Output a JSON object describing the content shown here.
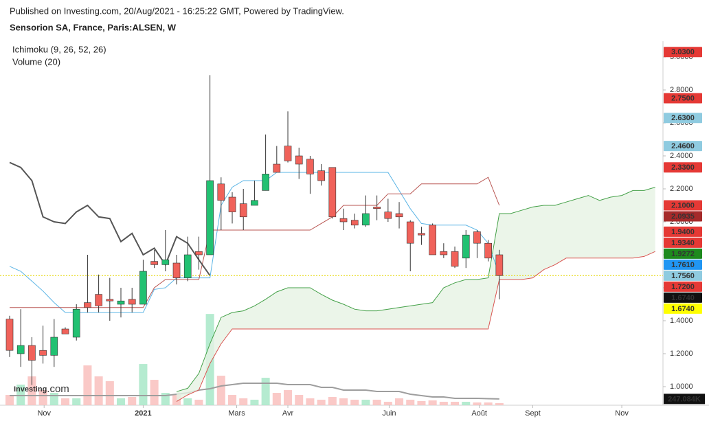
{
  "chart_data": {
    "type": "candlestick",
    "subtitle": "Published on Investing.com, 20/Aug/2021 - 16:25:22 GMT, Powered by TradingView.",
    "title": "Sensorion SA, France, Paris:ALSEN, W",
    "indicators": [
      "Ichimoku (9, 26, 52, 26)",
      "Volume (20)"
    ],
    "watermark": [
      "Investing",
      ".com"
    ],
    "x": [
      0,
      1,
      2,
      3,
      4,
      5,
      6,
      7,
      8,
      9,
      10,
      11,
      12,
      13,
      14,
      15,
      16,
      17,
      18,
      19,
      20,
      21,
      22,
      23,
      24,
      25,
      26,
      27,
      28,
      29,
      30,
      31,
      32,
      33,
      34,
      35,
      36,
      37,
      38,
      39,
      40,
      41,
      42,
      43,
      44
    ],
    "open": [
      1.41,
      1.2,
      1.25,
      1.22,
      1.19,
      1.35,
      1.3,
      1.51,
      1.56,
      1.53,
      1.5,
      1.53,
      1.5,
      1.76,
      1.74,
      1.75,
      1.66,
      1.82,
      1.8,
      2.23,
      2.15,
      2.11,
      2.1,
      2.19,
      2.35,
      2.46,
      2.4,
      2.38,
      2.31,
      2.33,
      2.02,
      2.01,
      1.98,
      2.09,
      2.06,
      2.05,
      2.0,
      1.93,
      1.98,
      1.82,
      1.82,
      1.78,
      1.94,
      1.87,
      1.8
    ],
    "high": [
      1.43,
      1.47,
      1.3,
      1.37,
      1.41,
      1.36,
      1.5,
      1.8,
      1.68,
      1.66,
      1.6,
      1.6,
      1.77,
      1.83,
      1.95,
      1.8,
      1.91,
      1.91,
      2.89,
      2.27,
      2.18,
      2.2,
      2.25,
      2.53,
      2.46,
      2.67,
      2.45,
      2.4,
      2.35,
      2.33,
      2.08,
      2.05,
      2.16,
      2.16,
      2.14,
      2.12,
      2.01,
      1.97,
      1.99,
      1.87,
      1.85,
      1.95,
      1.95,
      1.89,
      1.83
    ],
    "low": [
      1.18,
      1.12,
      1.01,
      1.14,
      1.12,
      1.32,
      1.28,
      1.45,
      1.45,
      1.4,
      1.42,
      1.45,
      1.5,
      1.72,
      1.7,
      1.62,
      1.64,
      1.71,
      1.8,
      1.95,
      1.99,
      1.95,
      2.1,
      2.19,
      2.3,
      2.36,
      2.26,
      2.17,
      2.22,
      2.02,
      1.95,
      1.96,
      1.97,
      2.01,
      2.0,
      1.96,
      1.7,
      1.86,
      1.8,
      1.78,
      1.72,
      1.72,
      1.78,
      1.76,
      1.53
    ],
    "close": [
      1.22,
      1.25,
      1.16,
      1.19,
      1.3,
      1.32,
      1.47,
      1.48,
      1.49,
      1.52,
      1.52,
      1.5,
      1.7,
      1.74,
      1.77,
      1.66,
      1.8,
      1.8,
      2.25,
      2.13,
      2.06,
      2.03,
      2.13,
      2.29,
      2.3,
      2.37,
      2.35,
      2.29,
      2.25,
      2.03,
      2.0,
      1.98,
      2.05,
      2.08,
      2.02,
      2.03,
      1.87,
      1.92,
      1.8,
      1.8,
      1.73,
      1.92,
      1.87,
      1.78,
      1.674
    ],
    "up_color": "#22c172",
    "down_color": "#f0625a",
    "wick_color": "#333333",
    "lines": [
      {
        "color": "#5ab4e5",
        "values": [
          1.73,
          1.7,
          1.64,
          1.58,
          1.51,
          1.45,
          1.45,
          1.45,
          1.45,
          1.45,
          1.45,
          1.45,
          1.45,
          1.59,
          1.6,
          1.66,
          1.66,
          1.66,
          1.66,
          2.1,
          2.21,
          2.25,
          2.25,
          2.25,
          2.3,
          2.3,
          2.3,
          2.3,
          2.3,
          2.3,
          2.3,
          2.3,
          2.3,
          2.3,
          2.3,
          2.19,
          2.08,
          1.99,
          1.98,
          1.98,
          1.98,
          1.98,
          1.95,
          1.87,
          1.68
        ]
      },
      {
        "color": "#b85450",
        "values": [
          1.48,
          1.48,
          1.48,
          1.48,
          1.48,
          1.48,
          1.48,
          1.48,
          1.48,
          1.48,
          1.48,
          1.48,
          1.48,
          1.6,
          1.65,
          1.65,
          1.65,
          1.65,
          1.95,
          1.95,
          1.95,
          1.95,
          1.95,
          1.95,
          1.95,
          1.95,
          1.95,
          1.95,
          1.99,
          2.03,
          2.1,
          2.1,
          2.1,
          2.1,
          2.17,
          2.17,
          2.17,
          2.23,
          2.23,
          2.23,
          2.23,
          2.23,
          2.23,
          2.27,
          2.1
        ]
      },
      {
        "color": "#555555",
        "width": 2,
        "values": [
          2.36,
          2.33,
          2.25,
          2.03,
          2.0,
          1.99,
          2.06,
          2.1,
          2.03,
          2.02,
          1.88,
          1.93,
          1.8,
          1.84,
          1.74,
          1.91,
          1.87,
          1.77,
          1.674,
          null,
          null,
          null,
          null,
          null,
          null,
          null,
          null,
          null,
          null,
          null,
          null,
          null,
          null,
          null,
          null,
          null,
          null,
          null,
          null,
          null,
          null,
          null,
          null,
          null,
          null
        ]
      }
    ],
    "cloud": {
      "fill": "#e6f3e3",
      "x": [
        15,
        16,
        17,
        18,
        19,
        20,
        21,
        22,
        23,
        24,
        25,
        26,
        27,
        28,
        29,
        30,
        31,
        32,
        33,
        34,
        35,
        36,
        37,
        38,
        39,
        40,
        41,
        42,
        43,
        44,
        45,
        46,
        47,
        48,
        49,
        50,
        51,
        52,
        53,
        54,
        55,
        56,
        57,
        58
      ],
      "series": [
        {
          "color": "#43a047",
          "values": [
            0.97,
            0.99,
            1.08,
            1.26,
            1.42,
            1.45,
            1.46,
            1.49,
            1.53,
            1.575,
            1.6,
            1.6,
            1.6,
            1.56,
            1.525,
            1.5,
            1.47,
            1.46,
            1.46,
            1.47,
            1.48,
            1.49,
            1.5,
            1.51,
            1.6,
            1.63,
            1.65,
            1.65,
            1.66,
            2.05,
            2.05,
            2.07,
            2.09,
            2.1,
            2.1,
            2.12,
            2.14,
            2.16,
            2.13,
            2.15,
            2.16,
            2.19,
            2.19,
            2.21
          ]
        },
        {
          "color": "#d9534f",
          "values": [
            0.91,
            0.95,
            0.98,
            1.14,
            1.26,
            1.35,
            1.35,
            1.35,
            1.35,
            1.35,
            1.35,
            1.35,
            1.35,
            1.35,
            1.35,
            1.35,
            1.35,
            1.35,
            1.35,
            1.35,
            1.35,
            1.35,
            1.35,
            1.35,
            1.35,
            1.35,
            1.35,
            1.35,
            1.35,
            1.65,
            1.65,
            1.65,
            1.66,
            1.71,
            1.74,
            1.78,
            1.78,
            1.78,
            1.78,
            1.78,
            1.78,
            1.78,
            1.79,
            1.82
          ]
        }
      ]
    },
    "volume": {
      "values": [
        405000,
        810000,
        1134000,
        594000,
        486000,
        270000,
        270000,
        1566000,
        1134000,
        945000,
        270000,
        324000,
        1620000,
        999000,
        486000,
        405000,
        270000,
        216000,
        3591000,
        1161000,
        405000,
        270000,
        216000,
        1080000,
        486000,
        594000,
        405000,
        270000,
        216000,
        324000,
        270000,
        216000,
        216000,
        216000,
        135000,
        270000,
        216000,
        162000,
        189000,
        135000,
        135000,
        135000,
        108000,
        108000,
        81000
      ],
      "up_color": "#a8e8c8",
      "down_color": "#f9c0bd",
      "vlim": [
        0,
        4000000
      ],
      "ma": {
        "color": "#9e9e9e",
        "values": [
          378000,
          378000,
          378000,
          378000,
          378000,
          378000,
          378000,
          378000,
          378000,
          378000,
          378000,
          378000,
          378000,
          378000,
          378000,
          432000,
          486000,
          594000,
          648000,
          756000,
          810000,
          864000,
          864000,
          864000,
          864000,
          810000,
          810000,
          810000,
          702000,
          702000,
          594000,
          594000,
          594000,
          540000,
          540000,
          540000,
          432000,
          378000,
          324000,
          324000,
          270000,
          270000,
          270000,
          256000,
          247084
        ],
        "last_label": {
          "value": 247084,
          "label": "247.084K",
          "bg": "#111111",
          "fg": "#ffffff"
        }
      }
    },
    "xlim": [
      -0.864,
      58.7
    ],
    "xticks": [
      {
        "value": 3.1,
        "label": "Nov"
      },
      {
        "value": 12.0,
        "label": "2021"
      },
      {
        "value": 20.4,
        "label": "Mars"
      },
      {
        "value": 25.0,
        "label": "Avr"
      },
      {
        "value": 34.1,
        "label": "Juin"
      },
      {
        "value": 42.2,
        "label": "Août"
      },
      {
        "value": 47.0,
        "label": "Sept"
      },
      {
        "value": 55.0,
        "label": "Nov"
      }
    ],
    "ylim": [
      0.8875,
      3.0958
    ],
    "yticks": [
      {
        "value": 1.0,
        "label": "1.0000"
      },
      {
        "value": 1.2,
        "label": "1.2000"
      },
      {
        "value": 1.4,
        "label": "1.4000"
      },
      {
        "value": 1.6,
        "label": "1.6000"
      },
      {
        "value": 1.8,
        "label": "1.8000"
      },
      {
        "value": 2.0,
        "label": "2.0000"
      },
      {
        "value": 2.2,
        "label": "2.2000"
      },
      {
        "value": 2.4,
        "label": "2.4000"
      },
      {
        "value": 2.6,
        "label": "2.6000"
      },
      {
        "value": 2.8,
        "label": "2.8000"
      },
      {
        "value": 3.0,
        "label": "3.0000"
      }
    ],
    "price_labels": [
      {
        "value": 3.03,
        "label": "3.0300",
        "bg": "#e53935",
        "fg": "#ffffff"
      },
      {
        "value": 2.75,
        "label": "2.7500",
        "bg": "#e53935",
        "fg": "#ffffff"
      },
      {
        "value": 2.63,
        "label": "2.6300",
        "bg": "#8fcbe0",
        "fg": "#111111"
      },
      {
        "value": 2.46,
        "label": "2.4600",
        "bg": "#8fcbe0",
        "fg": "#111111"
      },
      {
        "value": 2.33,
        "label": "2.3300",
        "bg": "#e53935",
        "fg": "#ffffff"
      },
      {
        "value": 2.1,
        "label": "2.1000",
        "bg": "#e53935",
        "fg": "#ffffff"
      },
      {
        "value": 2.0935,
        "label": "2.0935",
        "bg": "#a52a2a",
        "fg": "#ffffff"
      },
      {
        "value": 1.94,
        "label": "1.9400",
        "bg": "#e53935",
        "fg": "#ffffff"
      },
      {
        "value": 1.934,
        "label": "1.9340",
        "bg": "#e53935",
        "fg": "#ffffff"
      },
      {
        "value": 1.9272,
        "label": "1.9272",
        "bg": "#1e8a1e",
        "fg": "#ffffff"
      },
      {
        "value": 1.761,
        "label": "1.7610",
        "bg": "#2196f3",
        "fg": "#ffffff"
      },
      {
        "value": 1.756,
        "label": "1.7560",
        "bg": "#8fcbe0",
        "fg": "#111111"
      },
      {
        "value": 1.72,
        "label": "1.7200",
        "bg": "#e53935",
        "fg": "#ffffff"
      },
      {
        "value": 1.674,
        "label": "1.6740",
        "bg": "#111111",
        "fg": "#ffffff"
      },
      {
        "value": 1.674,
        "label": "1.6740",
        "bg": "#ffff00",
        "fg": "#111111",
        "dashed_line": true
      }
    ]
  }
}
